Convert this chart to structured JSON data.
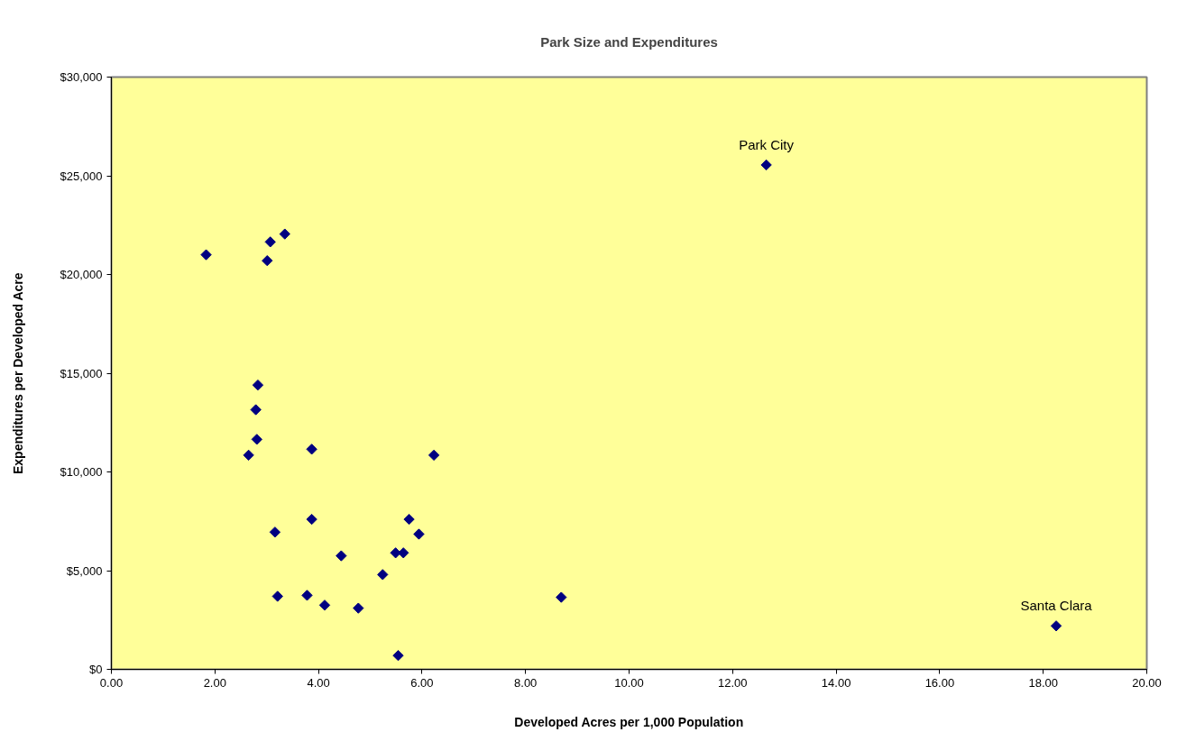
{
  "chart_data": {
    "type": "scatter",
    "title": "Park Size and Expenditures",
    "xlabel": "Developed Acres per 1,000 Population",
    "ylabel": "Expenditures per Developed Acre",
    "x": [
      1.83,
      3.07,
      3.35,
      3.01,
      2.83,
      2.79,
      2.81,
      2.65,
      3.87,
      6.23,
      3.16,
      3.87,
      5.75,
      5.94,
      4.44,
      5.49,
      5.64,
      5.24,
      3.21,
      3.78,
      4.12,
      4.77,
      5.54,
      8.69,
      12.65,
      18.25
    ],
    "series": [
      {
        "color": "#000080",
        "values": [
          21000,
          21650,
          22050,
          20700,
          14400,
          13150,
          11650,
          10850,
          11150,
          10850,
          6950,
          7600,
          7600,
          6850,
          5750,
          5900,
          5900,
          4800,
          3700,
          3750,
          3250,
          3100,
          700,
          3650,
          25550,
          2200
        ]
      }
    ],
    "xlim": [
      0,
      20
    ],
    "ylim": [
      0,
      30000
    ],
    "xticks": [
      {
        "value": 0,
        "label": "0.00"
      },
      {
        "value": 2,
        "label": "2.00"
      },
      {
        "value": 4,
        "label": "4.00"
      },
      {
        "value": 6,
        "label": "6.00"
      },
      {
        "value": 8,
        "label": "8.00"
      },
      {
        "value": 10,
        "label": "10.00"
      },
      {
        "value": 12,
        "label": "12.00"
      },
      {
        "value": 14,
        "label": "14.00"
      },
      {
        "value": 16,
        "label": "16.00"
      },
      {
        "value": 18,
        "label": "18.00"
      },
      {
        "value": 20,
        "label": "20.00"
      }
    ],
    "yticks": [
      {
        "value": 0,
        "label": "$0"
      },
      {
        "value": 5000,
        "label": "$5,000"
      },
      {
        "value": 10000,
        "label": "$10,000"
      },
      {
        "value": 15000,
        "label": "$15,000"
      },
      {
        "value": 20000,
        "label": "$20,000"
      },
      {
        "value": 25000,
        "label": "$25,000"
      },
      {
        "value": 30000,
        "label": "$30,000"
      }
    ],
    "annotations": [
      {
        "text": "Park City",
        "x": 12.65,
        "y": 25550
      },
      {
        "text": "Santa Clara",
        "x": 18.25,
        "y": 2200
      }
    ],
    "grid": false,
    "marker": "diamond"
  }
}
